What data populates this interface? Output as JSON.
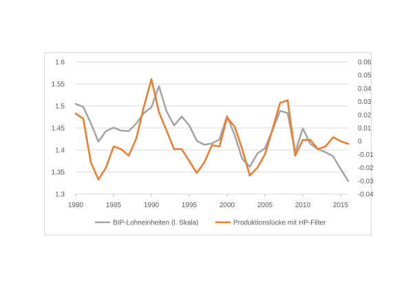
{
  "chart_data": {
    "type": "line",
    "title": "",
    "xlabel": "",
    "ylabel": "",
    "xlim": [
      1980,
      2016
    ],
    "ylim_left": [
      1.3,
      1.6
    ],
    "ylim_right": [
      -0.04,
      0.06
    ],
    "x_ticks": [
      1980,
      1985,
      1990,
      1995,
      2000,
      2005,
      2010,
      2015
    ],
    "y_ticks_left": [
      "1.6",
      "1.55",
      "1.5",
      "1.45",
      "1.4",
      "1.35",
      "1.3"
    ],
    "y_ticks_right": [
      "0.06",
      "0.05",
      "0.04",
      "0.03",
      "0.02",
      "0.01",
      "0",
      "-0.01",
      "-0.02",
      "-0.03",
      "-0.04"
    ],
    "grid": "horizontal",
    "legend_position": "bottom",
    "series": [
      {
        "name": "BIP-Lohneinheiten (l. Skala)",
        "axis": "left",
        "color": "#a5a5a5",
        "x": [
          1980,
          1981,
          1982,
          1983,
          1984,
          1985,
          1986,
          1987,
          1988,
          1989,
          1990,
          1991,
          1992,
          1993,
          1994,
          1995,
          1996,
          1997,
          1998,
          1999,
          2000,
          2001,
          2002,
          2003,
          2004,
          2005,
          2006,
          2007,
          2008,
          2009,
          2010,
          2011,
          2012,
          2013,
          2014,
          2015,
          2016
        ],
        "values": [
          1.505,
          1.498,
          1.461,
          1.419,
          1.443,
          1.451,
          1.444,
          1.443,
          1.46,
          1.484,
          1.497,
          1.545,
          1.488,
          1.456,
          1.476,
          1.456,
          1.421,
          1.412,
          1.415,
          1.424,
          1.477,
          1.434,
          1.38,
          1.362,
          1.392,
          1.404,
          1.445,
          1.489,
          1.484,
          1.394,
          1.449,
          1.414,
          1.402,
          1.395,
          1.386,
          1.357,
          1.33
        ]
      },
      {
        "name": "Produktionslücke mit HP-Filter",
        "axis": "right",
        "color": "#ed7d31",
        "x": [
          1980,
          1981,
          1982,
          1983,
          1984,
          1985,
          1986,
          1987,
          1988,
          1989,
          1990,
          1991,
          1992,
          1993,
          1994,
          1995,
          1996,
          1997,
          1998,
          1999,
          2000,
          2001,
          2002,
          2003,
          2004,
          2005,
          2006,
          2007,
          2008,
          2009,
          2010,
          2011,
          2012,
          2013,
          2014,
          2015,
          2016
        ],
        "values": [
          0.021,
          0.017,
          -0.016,
          -0.029,
          -0.02,
          -0.004,
          -0.006,
          -0.011,
          0.002,
          0.026,
          0.047,
          0.022,
          0.008,
          -0.006,
          -0.006,
          -0.015,
          -0.024,
          -0.016,
          -0.003,
          -0.004,
          0.018,
          0.011,
          -0.006,
          -0.026,
          -0.02,
          -0.01,
          0.009,
          0.029,
          0.031,
          -0.011,
          0.001,
          0.001,
          -0.006,
          -0.004,
          0.003,
          0.0,
          -0.002
        ]
      }
    ]
  }
}
